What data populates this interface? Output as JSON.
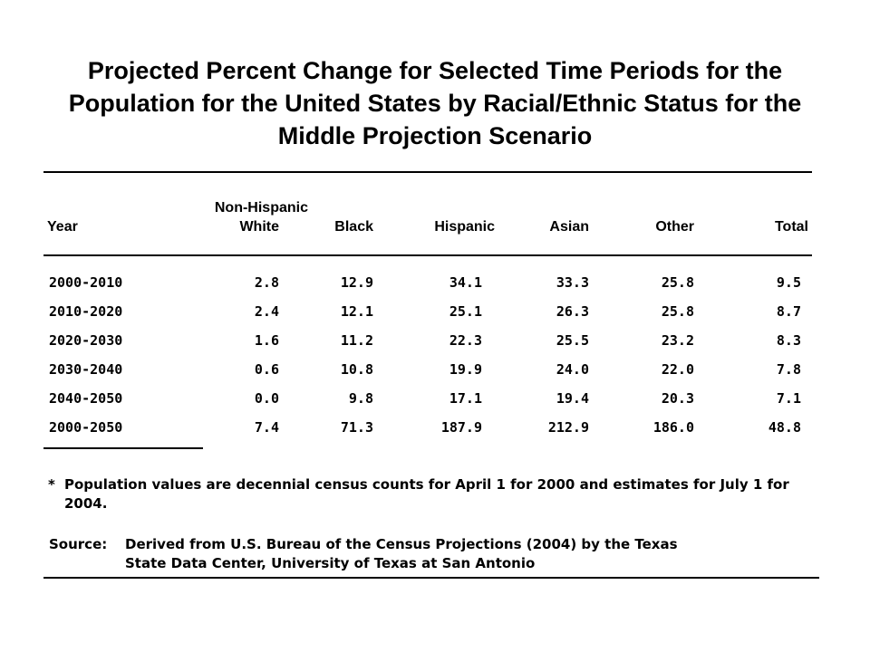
{
  "title": "Projected Percent Change for Selected Time Periods for the Population for the United States by Racial/Ethnic Status for the Middle Projection Scenario",
  "table": {
    "columns": [
      "Year",
      "Non-Hispanic White",
      "Black",
      "Hispanic",
      "Asian",
      "Other",
      "Total"
    ],
    "column_labels": {
      "year": "Year",
      "nhw_line1": "Non-Hispanic",
      "nhw_line2": "White",
      "black": "Black",
      "hispanic": "Hispanic",
      "asian": "Asian",
      "other": "Other",
      "total": "Total"
    },
    "rows": [
      {
        "year": "2000-2010",
        "nhw": "2.8",
        "black": "12.9",
        "hispanic": "34.1",
        "asian": "33.3",
        "other": "25.8",
        "total": "9.5"
      },
      {
        "year": "2010-2020",
        "nhw": "2.4",
        "black": "12.1",
        "hispanic": "25.1",
        "asian": "26.3",
        "other": "25.8",
        "total": "8.7"
      },
      {
        "year": "2020-2030",
        "nhw": "1.6",
        "black": "11.2",
        "hispanic": "22.3",
        "asian": "25.5",
        "other": "23.2",
        "total": "8.3"
      },
      {
        "year": "2030-2040",
        "nhw": "0.6",
        "black": "10.8",
        "hispanic": "19.9",
        "asian": "24.0",
        "other": "22.0",
        "total": "7.8"
      },
      {
        "year": "2040-2050",
        "nhw": "0.0",
        "black": "9.8",
        "hispanic": "17.1",
        "asian": "19.4",
        "other": "20.3",
        "total": "7.1"
      },
      {
        "year": "2000-2050",
        "nhw": "7.4",
        "black": "71.3",
        "hispanic": "187.9",
        "asian": "212.9",
        "other": "186.0",
        "total": "48.8"
      }
    ]
  },
  "footnote": {
    "marker": "*",
    "line1": "Population values are decennial census counts for April 1 for 2000 and estimates for July 1 for",
    "line2": "2004."
  },
  "source": {
    "label": "Source:",
    "line1": "Derived from U.S. Bureau of the Census Projections (2004) by the Texas",
    "line2": "State Data Center, University of Texas at San Antonio"
  }
}
